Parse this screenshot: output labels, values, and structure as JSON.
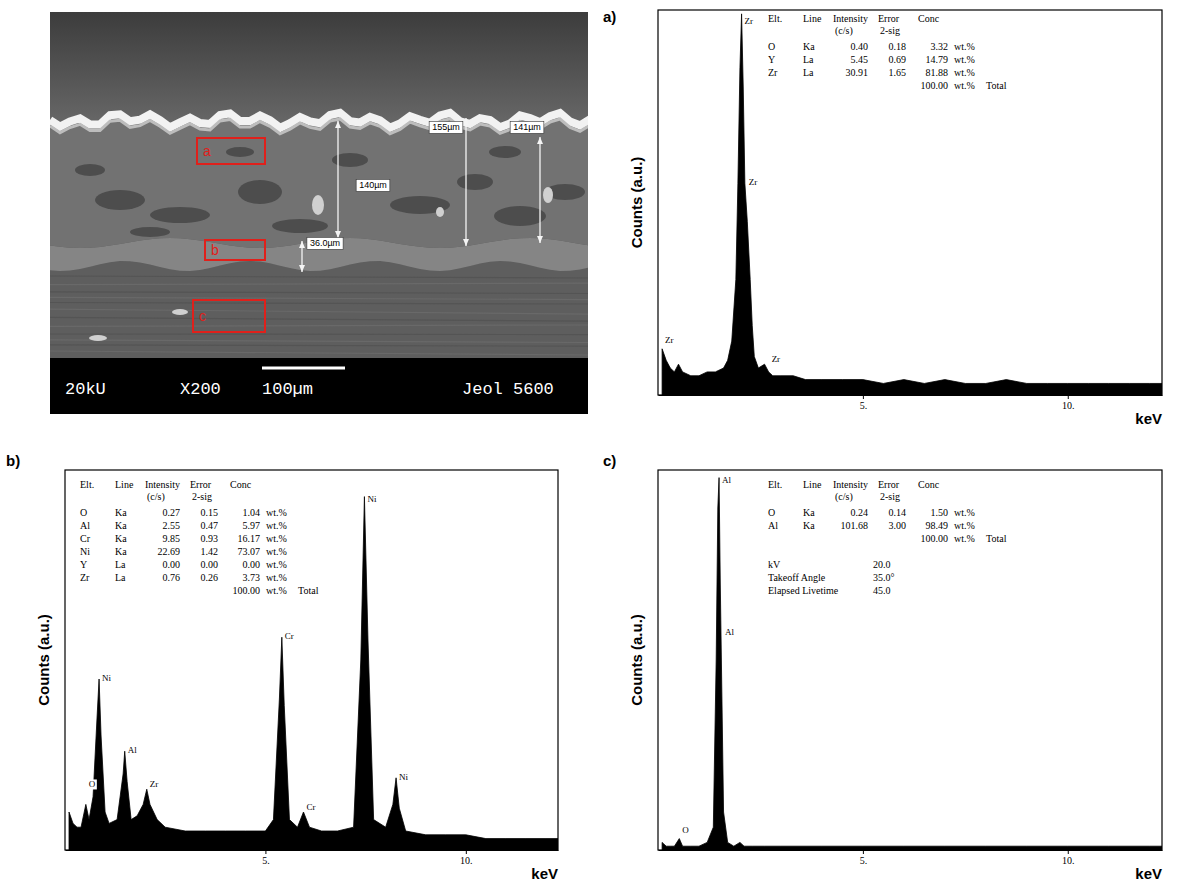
{
  "micrograph": {
    "regions": [
      "a",
      "b",
      "c"
    ],
    "measurements": [
      "140µm",
      "155µm",
      "141µm",
      "36.0µm"
    ],
    "info": [
      "20kU",
      "X200",
      "100µm",
      "Jeol 5600"
    ]
  },
  "chart_data": [
    {
      "type": "area",
      "panel_label": "a)",
      "ylabel": "Counts (a.u.)",
      "xlabel": "keV",
      "xlim": [
        0,
        12.3
      ],
      "xticks": [
        {
          "value": 5,
          "label": "5."
        },
        {
          "value": 10,
          "label": "10."
        }
      ],
      "ylim": [
        0,
        100
      ],
      "tick_labels": "x",
      "color": "#000000",
      "x": [
        0.1,
        0.2,
        0.3,
        0.4,
        0.5,
        0.6,
        0.8,
        1.0,
        1.2,
        1.4,
        1.6,
        1.7,
        1.8,
        1.9,
        1.95,
        2.0,
        2.04,
        2.08,
        2.12,
        2.18,
        2.25,
        2.3,
        2.35,
        2.45,
        2.6,
        2.7,
        2.8,
        3.0,
        3.3,
        3.6,
        4.0,
        4.5,
        5.0,
        5.5,
        6.0,
        6.5,
        7.0,
        7.5,
        8.0,
        8.5,
        9.0,
        9.5,
        10.0,
        10.5,
        11.0,
        11.5,
        12.0,
        12.3
      ],
      "values": [
        12,
        9,
        7,
        6,
        8,
        6,
        5,
        5,
        6,
        6,
        7,
        9,
        14,
        30,
        55,
        85,
        99,
        80,
        55,
        45,
        30,
        18,
        10,
        7,
        8,
        6,
        5,
        5,
        5,
        4,
        4,
        4,
        4,
        3,
        4,
        3,
        4,
        3,
        3,
        4,
        3,
        3,
        3,
        3,
        3,
        3,
        3,
        3
      ],
      "annotations": [
        {
          "text": "Zr",
          "x": 2.04,
          "y": 97
        },
        {
          "text": "Zr",
          "x": 2.14,
          "y": 55
        },
        {
          "text": "Zr",
          "x": 0.1,
          "y": 14
        },
        {
          "text": "Zr",
          "x": 2.7,
          "y": 9
        }
      ],
      "table": {
        "columns": [
          {
            "name": "Elt."
          },
          {
            "name": "Line"
          },
          {
            "name": "Intensity",
            "sub": "(c/s)"
          },
          {
            "name": "Error",
            "sub": "2-sig"
          },
          {
            "name": "Conc"
          }
        ],
        "rows": [
          [
            "O",
            "Ka",
            "0.40",
            "0.18",
            "3.32",
            "wt.%"
          ],
          [
            "Y",
            "La",
            "5.45",
            "0.69",
            "14.79",
            "wt.%"
          ],
          [
            "Zr",
            "La",
            "30.91",
            "1.65",
            "81.88",
            "wt.%"
          ]
        ],
        "total": {
          "conc": "100.00",
          "unit": "wt.%",
          "label": "Total"
        }
      }
    },
    {
      "type": "area",
      "panel_label": "b)",
      "ylabel": "Counts (a.u.)",
      "xlabel": "keV",
      "xlim": [
        0,
        12.3
      ],
      "xticks": [
        {
          "value": 5,
          "label": "5."
        },
        {
          "value": 10,
          "label": "10."
        }
      ],
      "ylim": [
        0,
        100
      ],
      "tick_labels": "x",
      "color": "#000000",
      "x": [
        0.1,
        0.2,
        0.3,
        0.4,
        0.52,
        0.6,
        0.7,
        0.8,
        0.85,
        0.9,
        1.0,
        1.1,
        1.3,
        1.45,
        1.49,
        1.55,
        1.65,
        1.8,
        1.95,
        2.04,
        2.12,
        2.3,
        2.5,
        3.0,
        3.5,
        4.0,
        4.5,
        5.0,
        5.2,
        5.35,
        5.41,
        5.47,
        5.6,
        5.8,
        5.95,
        6.1,
        6.4,
        6.8,
        7.2,
        7.38,
        7.47,
        7.56,
        7.7,
        8.0,
        8.18,
        8.26,
        8.34,
        8.5,
        9.0,
        9.5,
        10.0,
        10.5,
        11.0,
        11.5,
        12.0,
        12.3
      ],
      "values": [
        10,
        7,
        6,
        6,
        12,
        8,
        14,
        35,
        45,
        30,
        10,
        7,
        8,
        20,
        26,
        18,
        8,
        9,
        12,
        16,
        12,
        8,
        6,
        5,
        5,
        5,
        5,
        5,
        8,
        40,
        56,
        38,
        8,
        6,
        10,
        6,
        5,
        5,
        6,
        50,
        93,
        55,
        8,
        6,
        12,
        19,
        11,
        5,
        4,
        4,
        4,
        3,
        3,
        3,
        3,
        3
      ],
      "annotations": [
        {
          "text": "O",
          "x": 0.52,
          "y": 17
        },
        {
          "text": "Ni",
          "x": 0.85,
          "y": 45
        },
        {
          "text": "Al",
          "x": 1.49,
          "y": 26
        },
        {
          "text": "Zr",
          "x": 2.04,
          "y": 17
        },
        {
          "text": "Cr",
          "x": 5.41,
          "y": 56
        },
        {
          "text": "Cr",
          "x": 5.95,
          "y": 11
        },
        {
          "text": "Ni",
          "x": 7.47,
          "y": 92
        },
        {
          "text": "Ni",
          "x": 8.26,
          "y": 19
        }
      ],
      "table": {
        "columns": [
          {
            "name": "Elt."
          },
          {
            "name": "Line"
          },
          {
            "name": "Intensity",
            "sub": "(c/s)"
          },
          {
            "name": "Error",
            "sub": "2-sig"
          },
          {
            "name": "Conc"
          }
        ],
        "rows": [
          [
            "O",
            "Ka",
            "0.27",
            "0.15",
            "1.04",
            "wt.%"
          ],
          [
            "Al",
            "Ka",
            "2.55",
            "0.47",
            "5.97",
            "wt.%"
          ],
          [
            "Cr",
            "Ka",
            "9.85",
            "0.93",
            "16.17",
            "wt.%"
          ],
          [
            "Ni",
            "Ka",
            "22.69",
            "1.42",
            "73.07",
            "wt.%"
          ],
          [
            "Y",
            "La",
            "0.00",
            "0.00",
            "0.00",
            "wt.%"
          ],
          [
            "Zr",
            "La",
            "0.76",
            "0.26",
            "3.73",
            "wt.%"
          ]
        ],
        "total": {
          "conc": "100.00",
          "unit": "wt.%",
          "label": "Total"
        }
      }
    },
    {
      "type": "area",
      "panel_label": "c)",
      "ylabel": "Counts (a.u.)",
      "xlabel": "keV",
      "xlim": [
        0,
        12.3
      ],
      "xticks": [
        {
          "value": 5,
          "label": "5."
        },
        {
          "value": 10,
          "label": "10."
        }
      ],
      "ylim": [
        0,
        100
      ],
      "tick_labels": "x",
      "color": "#000000",
      "x": [
        0.1,
        0.2,
        0.3,
        0.4,
        0.52,
        0.6,
        0.8,
        1.0,
        1.2,
        1.35,
        1.42,
        1.46,
        1.49,
        1.52,
        1.56,
        1.6,
        1.7,
        1.85,
        2.0,
        2.1,
        2.3,
        2.6,
        3.0,
        4.0,
        5.0,
        6.0,
        7.0,
        8.0,
        9.0,
        10.0,
        11.0,
        12.0,
        12.3
      ],
      "values": [
        2,
        1,
        1,
        1,
        3,
        1,
        1,
        1,
        2,
        6,
        50,
        90,
        98,
        70,
        40,
        10,
        2,
        1,
        2,
        1,
        1,
        1,
        1,
        1,
        1,
        1,
        1,
        1,
        1,
        1,
        1,
        1,
        1
      ],
      "annotations": [
        {
          "text": "Al",
          "x": 1.49,
          "y": 97
        },
        {
          "text": "Al",
          "x": 1.56,
          "y": 57
        },
        {
          "text": "O",
          "x": 0.52,
          "y": 5
        }
      ],
      "table": {
        "columns": [
          {
            "name": "Elt."
          },
          {
            "name": "Line"
          },
          {
            "name": "Intensity",
            "sub": "(c/s)"
          },
          {
            "name": "Error",
            "sub": "2-sig"
          },
          {
            "name": "Conc"
          }
        ],
        "rows": [
          [
            "O",
            "Ka",
            "0.24",
            "0.14",
            "1.50",
            "wt.%"
          ],
          [
            "Al",
            "Ka",
            "101.68",
            "3.00",
            "98.49",
            "wt.%"
          ]
        ],
        "total": {
          "conc": "100.00",
          "unit": "wt.%",
          "label": "Total"
        }
      },
      "acquisition": [
        {
          "label": "kV",
          "value": "20.0"
        },
        {
          "label": "Takeoff Angle",
          "value": "35.0°"
        },
        {
          "label": "Elapsed Livetime",
          "value": "45.0"
        }
      ]
    }
  ]
}
